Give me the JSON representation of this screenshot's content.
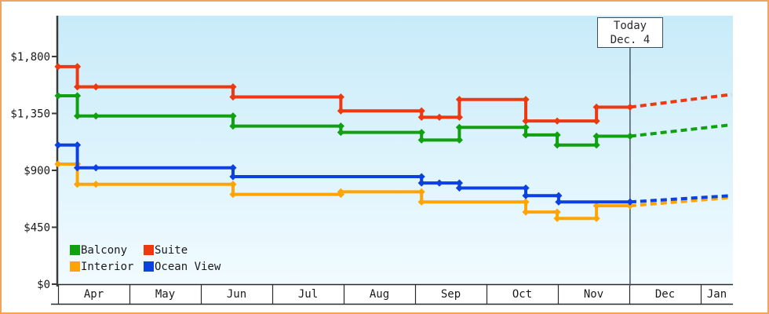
{
  "window": {
    "title": "Cabin price history chart"
  },
  "chart_data": {
    "type": "line",
    "step": true,
    "title": "",
    "x_axis": {
      "unit": "month",
      "labels": [
        "Apr",
        "May",
        "Jun",
        "Jul",
        "Aug",
        "Sep",
        "Oct",
        "Nov",
        "Dec",
        "Jan"
      ]
    },
    "y_axis": {
      "tick_values": [
        0,
        450,
        900,
        1350,
        1800
      ],
      "tick_labels": [
        "$0",
        "$450",
        "$900",
        "$1,350",
        "$1,800"
      ],
      "range": [
        0,
        2120
      ],
      "grid": false
    },
    "today": {
      "line1": "Today",
      "line2": "Dec. 4",
      "t": 8.01
    },
    "legend": [
      {
        "label": "Balcony",
        "color": "#10a010"
      },
      {
        "label": "Suite",
        "color": "#ee3810"
      },
      {
        "label": "Interior",
        "color": "#ffa405"
      },
      {
        "label": "Ocean View",
        "color": "#0c41e1"
      }
    ],
    "legend_position": "bottom-left",
    "series": [
      {
        "name": "Interior",
        "color": "#ffa405",
        "points": [
          {
            "t": 0.0,
            "p": 950
          },
          {
            "t": 0.27,
            "p": 790
          },
          {
            "t": 0.53,
            "p": 790
          },
          {
            "t": 2.45,
            "p": 710
          },
          {
            "t": 3.96,
            "p": 730
          },
          {
            "t": 5.09,
            "p": 650
          },
          {
            "t": 6.55,
            "p": 570
          },
          {
            "t": 6.99,
            "p": 520
          },
          {
            "t": 7.54,
            "p": 620
          },
          {
            "t": 8.01,
            "p": 620
          }
        ],
        "projection": {
          "t": 9.43,
          "p": 685
        }
      },
      {
        "name": "Ocean View",
        "color": "#0c41e1",
        "points": [
          {
            "t": 0.0,
            "p": 1100
          },
          {
            "t": 0.27,
            "p": 920
          },
          {
            "t": 0.53,
            "p": 920
          },
          {
            "t": 2.45,
            "p": 850
          },
          {
            "t": 5.09,
            "p": 800
          },
          {
            "t": 5.34,
            "p": 800
          },
          {
            "t": 5.62,
            "p": 760
          },
          {
            "t": 6.55,
            "p": 700
          },
          {
            "t": 7.01,
            "p": 650
          },
          {
            "t": 8.01,
            "p": 650
          }
        ],
        "projection": {
          "t": 9.43,
          "p": 700
        }
      },
      {
        "name": "Balcony",
        "color": "#10a010",
        "points": [
          {
            "t": 0.0,
            "p": 1490
          },
          {
            "t": 0.27,
            "p": 1330
          },
          {
            "t": 0.53,
            "p": 1330
          },
          {
            "t": 2.45,
            "p": 1250
          },
          {
            "t": 3.96,
            "p": 1200
          },
          {
            "t": 5.09,
            "p": 1140
          },
          {
            "t": 5.62,
            "p": 1240
          },
          {
            "t": 6.55,
            "p": 1180
          },
          {
            "t": 6.99,
            "p": 1100
          },
          {
            "t": 7.54,
            "p": 1170
          },
          {
            "t": 8.01,
            "p": 1170
          }
        ],
        "projection": {
          "t": 9.43,
          "p": 1260
        }
      },
      {
        "name": "Suite",
        "color": "#ee3810",
        "points": [
          {
            "t": 0.0,
            "p": 1720
          },
          {
            "t": 0.27,
            "p": 1560
          },
          {
            "t": 0.53,
            "p": 1560
          },
          {
            "t": 2.45,
            "p": 1480
          },
          {
            "t": 3.96,
            "p": 1370
          },
          {
            "t": 5.09,
            "p": 1320
          },
          {
            "t": 5.34,
            "p": 1320
          },
          {
            "t": 5.62,
            "p": 1460
          },
          {
            "t": 6.55,
            "p": 1290
          },
          {
            "t": 6.99,
            "p": 1290
          },
          {
            "t": 7.54,
            "p": 1400
          },
          {
            "t": 8.01,
            "p": 1400
          }
        ],
        "projection": {
          "t": 9.43,
          "p": 1500
        }
      }
    ],
    "colors": {
      "plot_bg_top": "#c8ebf9",
      "plot_bg_bottom": "#f1fbff",
      "axis": "#3a3a3a",
      "text": "#1a1a1a",
      "today_line": "#4a5863",
      "page_border": "#f0a45e"
    }
  }
}
